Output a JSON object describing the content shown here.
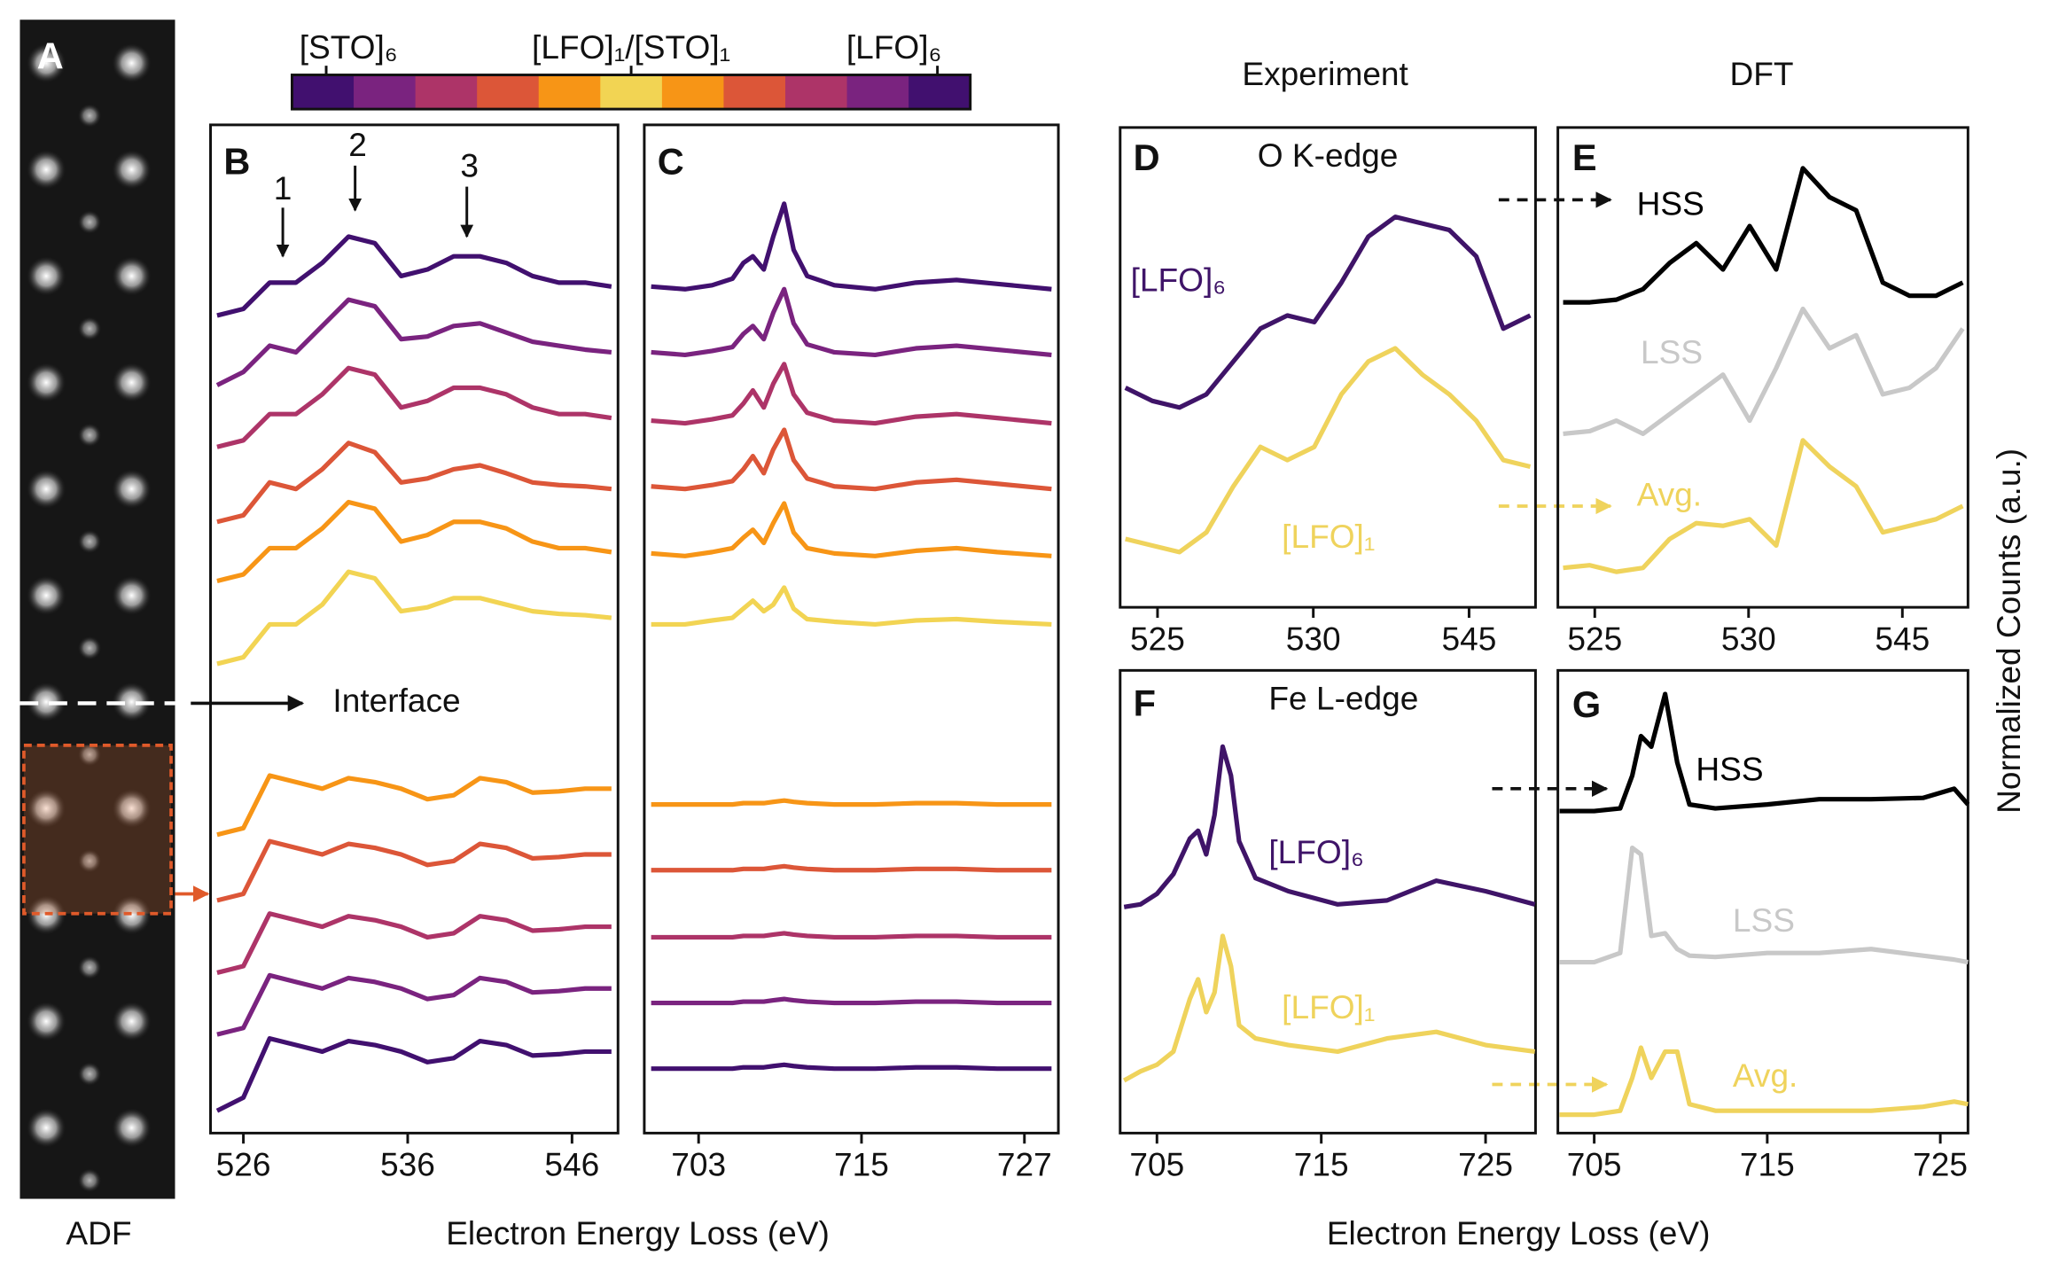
{
  "panel_a": "A",
  "adf_label": "ADF",
  "interface": "Interface",
  "column_titles": [
    "Experiment",
    "DFT"
  ],
  "xlabel": [
    "Electron Energy Loss (eV)",
    "Electron Energy Loss (eV)"
  ],
  "ylabel": "Normalized Counts (a.u.)",
  "colorbar": {
    "labels": [
      "[STO]₆",
      "[LFO]₁/[STO]₁",
      "[LFO]₆"
    ],
    "colors": [
      "#41106f",
      "#7a237f",
      "#ad3468",
      "#dc5638",
      "#f79516",
      "#f2d453",
      "#f79516",
      "#dc5638",
      "#ad3468",
      "#7a237f",
      "#41106f"
    ]
  },
  "chart_data": [
    {
      "type": "line",
      "label": "B",
      "annotations": [
        "1",
        "2",
        "3"
      ],
      "xlim": [
        524,
        548.8
      ],
      "xticks": [
        526,
        536,
        546
      ],
      "ylim": [
        0,
        767
      ],
      "x": [
        524.4,
        526,
        527.6,
        529.2,
        530.8,
        532.4,
        534,
        535.6,
        537.2,
        538.8,
        540.4,
        542,
        543.6,
        545.2,
        546.8,
        548.4
      ],
      "series": [
        {
          "color": "#41106f",
          "values": [
            622,
            627,
            647,
            647,
            662,
            682,
            677,
            652,
            657,
            667,
            667,
            662,
            652,
            647,
            647,
            644
          ]
        },
        {
          "color": "#7a237f",
          "values": [
            569,
            579,
            599,
            594,
            614,
            634,
            629,
            604,
            606,
            614,
            616,
            609,
            602,
            599,
            596,
            594
          ]
        },
        {
          "color": "#ad3468",
          "values": [
            522,
            527,
            547,
            547,
            562,
            582,
            577,
            552,
            557,
            567,
            567,
            562,
            552,
            547,
            547,
            544
          ]
        },
        {
          "color": "#dc5638",
          "values": [
            465,
            470,
            495,
            490,
            505,
            525,
            518,
            495,
            498,
            505,
            508,
            502,
            495,
            493,
            492,
            490
          ]
        },
        {
          "color": "#f79516",
          "values": [
            420,
            425,
            445,
            445,
            460,
            480,
            475,
            450,
            455,
            465,
            465,
            460,
            450,
            445,
            445,
            442
          ]
        },
        {
          "color": "#f2d453",
          "values": [
            357,
            362,
            387,
            387,
            402,
            427,
            422,
            397,
            400,
            407,
            407,
            402,
            397,
            395,
            394,
            392
          ]
        },
        {
          "color": "#f79516",
          "values": [
            227,
            232,
            272,
            267,
            262,
            270,
            267,
            262,
            254,
            257,
            270,
            267,
            259,
            260,
            262,
            262
          ]
        },
        {
          "color": "#dc5638",
          "values": [
            177,
            182,
            222,
            217,
            212,
            220,
            217,
            212,
            204,
            207,
            220,
            217,
            209,
            210,
            212,
            212
          ]
        },
        {
          "color": "#ad3468",
          "values": [
            122,
            127,
            167,
            162,
            157,
            165,
            162,
            157,
            149,
            152,
            165,
            162,
            154,
            155,
            157,
            157
          ]
        },
        {
          "color": "#7a237f",
          "values": [
            75,
            80,
            120,
            115,
            110,
            118,
            115,
            110,
            102,
            105,
            118,
            115,
            107,
            108,
            110,
            110
          ]
        },
        {
          "color": "#41106f",
          "values": [
            17,
            27,
            72,
            67,
            62,
            70,
            67,
            62,
            54,
            57,
            70,
            67,
            59,
            60,
            62,
            62
          ]
        }
      ]
    },
    {
      "type": "line",
      "label": "C",
      "xlim": [
        699,
        729.5
      ],
      "xticks": [
        703,
        715,
        727
      ],
      "ylim": [
        0,
        767
      ],
      "x": [
        699.5,
        702,
        704,
        705.5,
        706.3,
        707,
        707.8,
        708.5,
        709.3,
        710,
        711,
        713,
        716,
        719,
        722,
        725,
        729
      ],
      "series": [
        {
          "color": "#41106f",
          "values": [
            644,
            642,
            645,
            650,
            662,
            667,
            657,
            682,
            707,
            672,
            652,
            645,
            642,
            647,
            649,
            646,
            642
          ]
        },
        {
          "color": "#7a237f",
          "values": [
            594,
            592,
            595,
            598,
            608,
            614,
            604,
            624,
            642,
            616,
            600,
            594,
            592,
            597,
            599,
            596,
            592
          ]
        },
        {
          "color": "#ad3468",
          "values": [
            542,
            540,
            543,
            546,
            555,
            565,
            552,
            570,
            585,
            562,
            548,
            542,
            540,
            545,
            547,
            544,
            540
          ]
        },
        {
          "color": "#dc5638",
          "values": [
            492,
            490,
            493,
            496,
            505,
            515,
            502,
            520,
            535,
            512,
            498,
            492,
            490,
            495,
            497,
            494,
            490
          ]
        },
        {
          "color": "#f79516",
          "values": [
            441,
            439,
            442,
            445,
            453,
            459,
            449,
            464,
            479,
            457,
            445,
            441,
            439,
            443,
            445,
            442,
            439
          ]
        },
        {
          "color": "#f2d453",
          "values": [
            387,
            387,
            390,
            392,
            399,
            405,
            397,
            402,
            415,
            399,
            391,
            389,
            387,
            390,
            391,
            389,
            387
          ]
        },
        {
          "color": "#f79516",
          "values": [
            250,
            250,
            250,
            250,
            251,
            251,
            251,
            252,
            253,
            252,
            251,
            250,
            250,
            251,
            251,
            250,
            250
          ]
        },
        {
          "color": "#dc5638",
          "values": [
            200,
            200,
            200,
            200,
            201,
            201,
            201,
            202,
            203,
            202,
            201,
            200,
            200,
            201,
            201,
            200,
            200
          ]
        },
        {
          "color": "#ad3468",
          "values": [
            149,
            149,
            149,
            149,
            150,
            150,
            150,
            151,
            152,
            151,
            150,
            149,
            149,
            150,
            150,
            149,
            149
          ]
        },
        {
          "color": "#7a237f",
          "values": [
            99,
            99,
            99,
            99,
            100,
            100,
            100,
            101,
            102,
            101,
            100,
            99,
            99,
            100,
            100,
            99,
            99
          ]
        },
        {
          "color": "#41106f",
          "values": [
            49,
            49,
            49,
            49,
            50,
            50,
            50,
            51,
            52,
            51,
            50,
            49,
            49,
            50,
            50,
            49,
            49
          ]
        }
      ]
    },
    {
      "type": "line",
      "label": "D",
      "title": "O K-edge",
      "xticks": [
        525,
        530,
        545
      ],
      "ylim": [
        0,
        365
      ],
      "series": [
        {
          "name": "[LFO]₆",
          "color": "#3f1468",
          "values": [
            167,
            157,
            152,
            162,
            187,
            212,
            222,
            217,
            247,
            282,
            297,
            292,
            287,
            267,
            212,
            222
          ]
        },
        {
          "name": "[LFO]₁",
          "color": "#efd35c",
          "values": [
            52,
            47,
            42,
            57,
            92,
            122,
            112,
            122,
            162,
            187,
            197,
            177,
            162,
            142,
            112,
            107
          ]
        }
      ]
    },
    {
      "type": "line",
      "label": "E",
      "xticks": [
        525,
        530,
        545
      ],
      "ylim": [
        0,
        365
      ],
      "series": [
        {
          "name": "HSS",
          "color": "#000000",
          "values": [
            232,
            232,
            234,
            242,
            262,
            277,
            257,
            290,
            257,
            334,
            312,
            302,
            247,
            237,
            237,
            247
          ]
        },
        {
          "name": "LSS",
          "color": "#c8c8c8",
          "values": [
            132,
            134,
            142,
            132,
            147,
            162,
            177,
            142,
            182,
            227,
            197,
            207,
            162,
            167,
            182,
            212
          ]
        },
        {
          "name": "Avg.",
          "color": "#efd35c",
          "values": [
            30,
            32,
            27,
            30,
            52,
            64,
            62,
            67,
            47,
            127,
            107,
            92,
            57,
            62,
            67,
            77
          ]
        }
      ]
    },
    {
      "type": "line",
      "label": "F",
      "title": "Fe L-edge",
      "xlim": [
        702.76,
        728.04
      ],
      "xticks": [
        705,
        715,
        725
      ],
      "ylim": [
        0,
        352
      ],
      "x": [
        703,
        704,
        705,
        706,
        707,
        707.5,
        708,
        708.5,
        709,
        709.5,
        710,
        711,
        713,
        716,
        719,
        722,
        725,
        728
      ],
      "series": [
        {
          "name": "[LFO]₆",
          "color": "#3f1468",
          "values": [
            172,
            174,
            182,
            197,
            224,
            230,
            212,
            242,
            294,
            272,
            222,
            194,
            184,
            174,
            177,
            192,
            184,
            174
          ]
        },
        {
          "name": "[LFO]₁",
          "color": "#efd35c",
          "values": [
            40,
            47,
            52,
            62,
            102,
            117,
            92,
            107,
            150,
            127,
            82,
            72,
            67,
            62,
            72,
            77,
            67,
            62
          ]
        }
      ]
    },
    {
      "type": "line",
      "label": "G",
      "xlim": [
        702.9,
        726.6
      ],
      "xticks": [
        705,
        715,
        725
      ],
      "ylim": [
        0,
        352
      ],
      "x": [
        703,
        705,
        706.5,
        707.2,
        707.7,
        708.3,
        709.1,
        709.8,
        710.5,
        712,
        715,
        718,
        721,
        724,
        725.8,
        726.6
      ],
      "series": [
        {
          "name": "HSS",
          "color": "#000000",
          "values": [
            245,
            245,
            247,
            272,
            302,
            294,
            334,
            282,
            250,
            247,
            250,
            254,
            254,
            255,
            262,
            250
          ]
        },
        {
          "name": "LSS",
          "color": "#c8c8c8",
          "values": [
            130,
            130,
            137,
            217,
            212,
            150,
            152,
            140,
            135,
            134,
            137,
            137,
            140,
            135,
            132,
            130
          ]
        },
        {
          "name": "Avg.",
          "color": "#efd35c",
          "values": [
            14,
            14,
            17,
            42,
            65,
            42,
            62,
            62,
            22,
            17,
            17,
            17,
            17,
            20,
            24,
            22
          ]
        }
      ]
    }
  ]
}
